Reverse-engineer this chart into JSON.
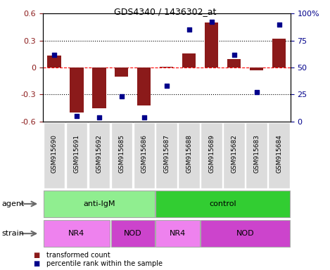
{
  "title": "GDS4340 / 1436302_at",
  "samples": [
    "GSM915690",
    "GSM915691",
    "GSM915692",
    "GSM915685",
    "GSM915686",
    "GSM915687",
    "GSM915688",
    "GSM915689",
    "GSM915682",
    "GSM915683",
    "GSM915684"
  ],
  "bar_values": [
    0.13,
    -0.5,
    -0.45,
    -0.1,
    -0.42,
    0.01,
    0.16,
    0.5,
    0.09,
    -0.03,
    0.32
  ],
  "percentile_values": [
    62,
    5,
    4,
    23,
    4,
    33,
    85,
    92,
    62,
    27,
    90
  ],
  "ylim": [
    -0.6,
    0.6
  ],
  "y2lim": [
    0,
    100
  ],
  "yticks": [
    -0.6,
    -0.3,
    0,
    0.3,
    0.6
  ],
  "y2ticks": [
    0,
    25,
    50,
    75,
    100
  ],
  "y2ticklabels": [
    "0",
    "25",
    "50",
    "75",
    "100%"
  ],
  "bar_color": "#8B1A1A",
  "scatter_color": "#00008B",
  "agent_groups": [
    {
      "label": "anti-IgM",
      "start": 0,
      "end": 5,
      "color": "#90EE90"
    },
    {
      "label": "control",
      "start": 5,
      "end": 11,
      "color": "#32CD32"
    }
  ],
  "strain_groups": [
    {
      "label": "NR4",
      "start": 0,
      "end": 3,
      "color": "#DA70D6"
    },
    {
      "label": "NOD",
      "start": 3,
      "end": 5,
      "color": "#DA70D6"
    },
    {
      "label": "NR4",
      "start": 5,
      "end": 7,
      "color": "#DA70D6"
    },
    {
      "label": "NOD",
      "start": 7,
      "end": 11,
      "color": "#DA70D6"
    }
  ],
  "legend_items": [
    {
      "label": "transformed count",
      "color": "#8B1A1A"
    },
    {
      "label": "percentile rank within the sample",
      "color": "#00008B"
    }
  ],
  "dotted_line_color": "black",
  "dashed_line_color": "red",
  "bar_width": 0.6,
  "tick_bg_color": "#DCDCDC",
  "agent_arrow_color": "#696969",
  "strain_arrow_color": "#696969"
}
